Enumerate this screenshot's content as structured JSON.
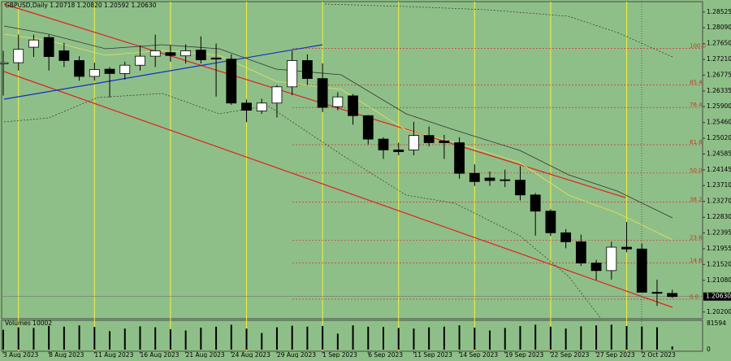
{
  "chart_data": {
    "type": "candlestick",
    "title": "GBPUSD,Daily  1.20718 1.20820 1.20592 1.20630",
    "categories": [
      "3 Aug 2023",
      null,
      null,
      "8 Aug 2023",
      null,
      null,
      "11 Aug 2023",
      null,
      null,
      "16 Aug 2023",
      null,
      null,
      "21 Aug 2023",
      null,
      null,
      "24 Aug 2023",
      null,
      null,
      "29 Aug 2023",
      null,
      null,
      "1 Sep 2023",
      null,
      null,
      "6 Sep 2023",
      null,
      null,
      "11 Sep 2023",
      null,
      null,
      "14 Sep 2023",
      null,
      null,
      "19 Sep 2023",
      null,
      null,
      "22 Sep 2023",
      null,
      null,
      "27 Sep 2023",
      null,
      null,
      "2 Oct 2023",
      null,
      null
    ],
    "open": [
      1.2709,
      1.2712,
      1.2755,
      1.2782,
      1.2745,
      1.2718,
      1.2674,
      1.2694,
      1.2682,
      1.2705,
      1.273,
      1.274,
      1.2731,
      1.2747,
      1.2725,
      1.2722,
      1.26,
      1.2578,
      1.26,
      1.2645,
      1.2718,
      1.2668,
      1.259,
      1.262,
      1.2565,
      1.25,
      1.247,
      1.247,
      1.251,
      1.2495,
      1.249,
      1.2405,
      1.2392,
      1.2387,
      1.2386,
      1.2345,
      1.23,
      1.224,
      1.2215,
      1.2156,
      1.2135,
      1.22,
      1.2195,
      1.2075,
      1.20718
    ],
    "high": [
      1.2745,
      1.279,
      1.279,
      1.279,
      1.2767,
      1.273,
      1.2712,
      1.27,
      1.2715,
      1.276,
      1.279,
      1.276,
      1.2763,
      1.2785,
      1.2765,
      1.2735,
      1.261,
      1.2612,
      1.265,
      1.2745,
      1.2735,
      1.271,
      1.263,
      1.2625,
      1.2567,
      1.2505,
      1.249,
      1.2548,
      1.2535,
      1.2512,
      1.2505,
      1.243,
      1.241,
      1.2415,
      1.2425,
      1.235,
      1.2305,
      1.225,
      1.2235,
      1.2165,
      1.2215,
      1.227,
      1.221,
      1.211,
      1.2082
    ],
    "low": [
      1.2621,
      1.269,
      1.2728,
      1.269,
      1.27,
      1.2662,
      1.2662,
      1.2616,
      1.2665,
      1.269,
      1.27,
      1.2715,
      1.271,
      1.271,
      1.2618,
      1.2595,
      1.2547,
      1.257,
      1.256,
      1.2622,
      1.265,
      1.2575,
      1.258,
      1.254,
      1.2485,
      1.2445,
      1.2455,
      1.2455,
      1.248,
      1.2445,
      1.239,
      1.237,
      1.237,
      1.2367,
      1.233,
      1.2232,
      1.2231,
      1.2197,
      1.2148,
      1.2109,
      1.211,
      1.2186,
      1.2075,
      1.2037,
      1.20592
    ],
    "close": [
      1.2712,
      1.2749,
      1.2775,
      1.2729,
      1.2718,
      1.2674,
      1.2693,
      1.2682,
      1.2705,
      1.273,
      1.2745,
      1.2732,
      1.2745,
      1.272,
      1.2722,
      1.26,
      1.258,
      1.26,
      1.2645,
      1.2718,
      1.2668,
      1.2588,
      1.2617,
      1.2565,
      1.25,
      1.247,
      1.2465,
      1.251,
      1.249,
      1.249,
      1.2405,
      1.2382,
      1.2385,
      1.2385,
      1.2345,
      1.23,
      1.224,
      1.2215,
      1.2156,
      1.2135,
      1.22,
      1.2195,
      1.2075,
      1.2072,
      1.2063
    ],
    "up_color": "#ffffff",
    "down_color": "#000000",
    "ylim": [
      1.2006,
      1.2886
    ],
    "yticks": [
      1.28525,
      {
        "value": 1.2809,
        "label": "1.28090"
      },
      {
        "value": 1.2765,
        "label": "1.27650"
      },
      {
        "value": 1.2721,
        "label": "1.27210"
      },
      1.26775,
      1.26335,
      {
        "value": 1.259,
        "label": "1.25900"
      },
      {
        "value": 1.2546,
        "label": "1.25460"
      },
      {
        "value": 1.2502,
        "label": "1.25020"
      },
      1.24585,
      1.24145,
      {
        "value": 1.2371,
        "label": "1.23710"
      },
      {
        "value": 1.2327,
        "label": "1.23270"
      },
      {
        "value": 1.2283,
        "label": "1.22830"
      },
      1.22395,
      1.21955,
      {
        "value": 1.2152,
        "label": "1.21520"
      },
      {
        "value": 1.2108,
        "label": "1.21080"
      },
      {
        "value": 1.202,
        "label": "1.20200"
      }
    ],
    "current_price": {
      "value": 1.2063,
      "label": "1.20630"
    },
    "fib_levels": [
      "100.0",
      "85.4",
      "76.4",
      "61.8",
      "50.0",
      "38.2",
      "23.6",
      "14.6",
      "0.0"
    ],
    "fib_prices": [
      1.27515,
      1.26505,
      1.25876,
      1.24843,
      1.24058,
      1.2325,
      1.22194,
      1.21566,
      1.20556
    ],
    "fib_color": "#d03030",
    "volume_label": "Volumes 10002",
    "volumes": [
      62000,
      70000,
      68000,
      74000,
      72000,
      76000,
      71000,
      58000,
      66000,
      73000,
      70000,
      64000,
      60000,
      69000,
      72000,
      78000,
      66000,
      52000,
      70000,
      75000,
      72000,
      74000,
      50000,
      76000,
      72000,
      71000,
      68000,
      66000,
      70000,
      72000,
      76000,
      69000,
      60000,
      68000,
      74000,
      78000,
      72000,
      66000,
      73000,
      76000,
      78000,
      74000,
      72000,
      70000,
      10002
    ],
    "vylim": [
      0,
      81594
    ],
    "vyticks": [
      0,
      81594
    ]
  }
}
